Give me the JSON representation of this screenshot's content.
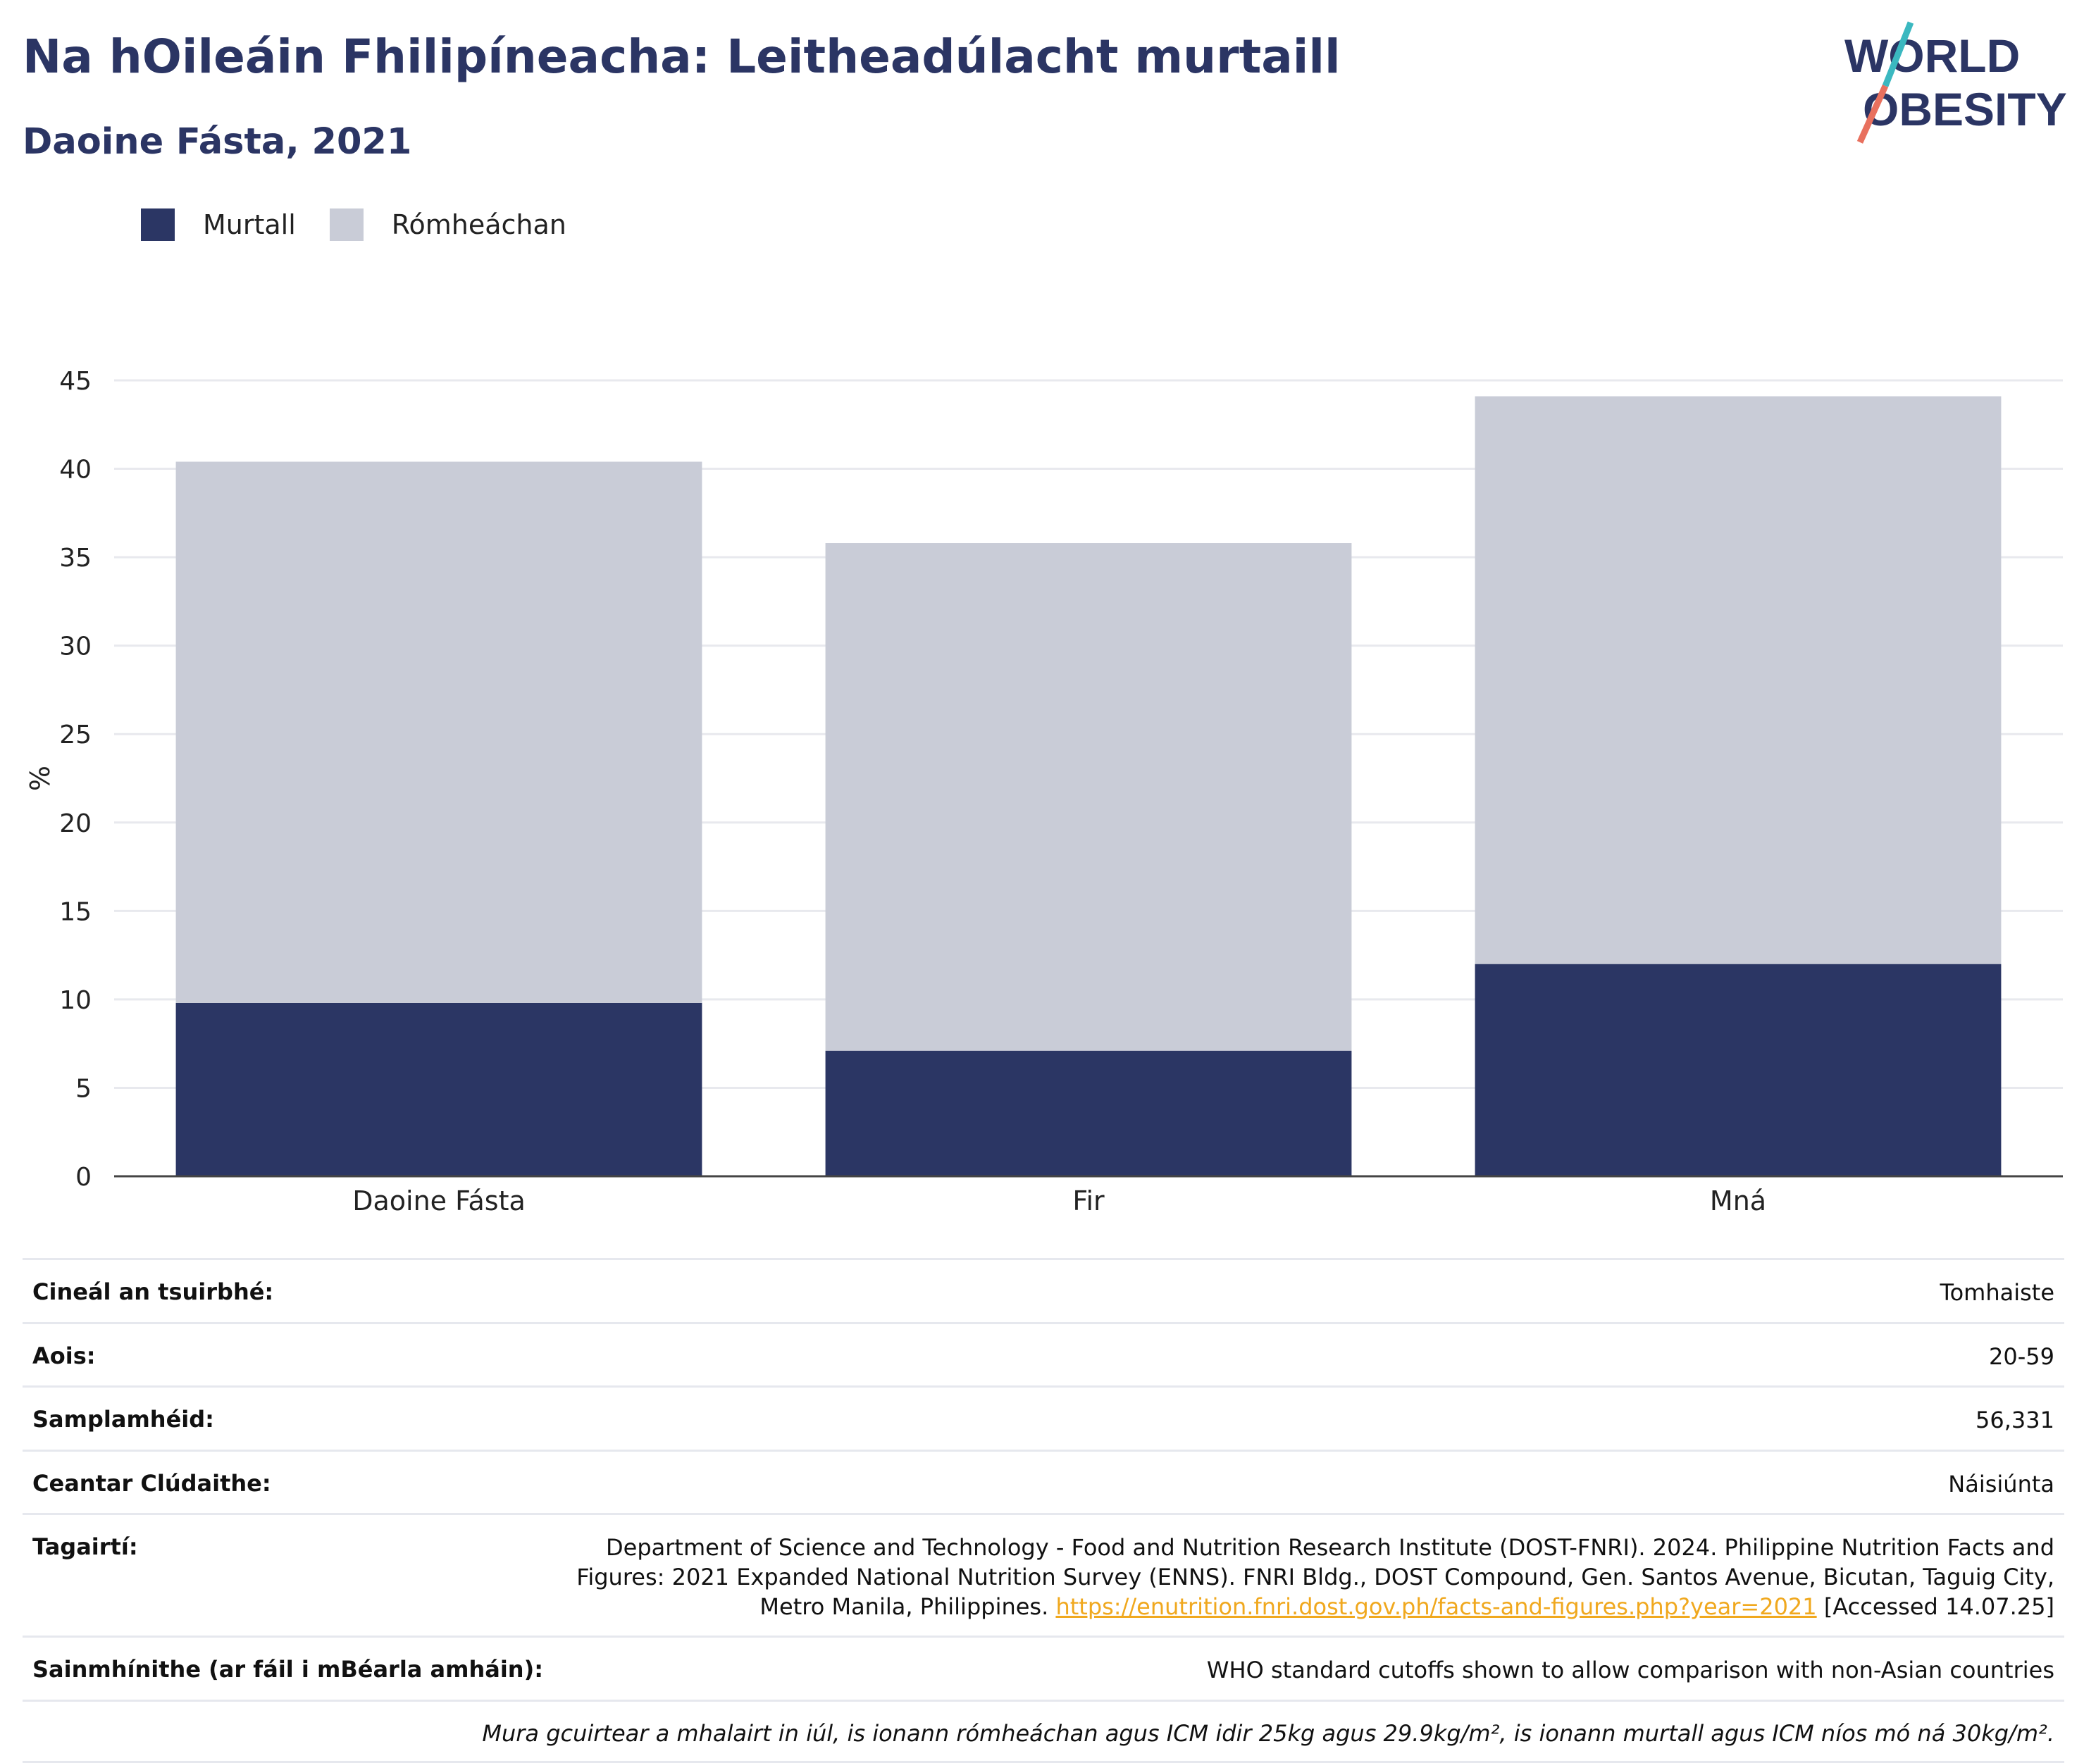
{
  "title": "Na hOileáin Fhilipíneacha: Leitheadúlacht murtaill",
  "subtitle": "Daoine Fásta, 2021",
  "logo": {
    "line1": "WORLD",
    "line2": "OBESITY"
  },
  "colors": {
    "obese": "#2b3664",
    "overweight": "#c9ccd7",
    "title": "#2b3564",
    "link": "#f0a81e",
    "logo_teal": "#3bb8c0",
    "logo_coral": "#e8705e"
  },
  "legend": [
    {
      "label": "Murtall",
      "color": "#2b3664"
    },
    {
      "label": "Rómheáchan",
      "color": "#c9ccd7"
    }
  ],
  "chart_data": {
    "type": "bar",
    "stacked": true,
    "categories": [
      "Daoine Fásta",
      "Fir",
      "Mná"
    ],
    "series": [
      {
        "name": "Murtall",
        "values": [
          9.8,
          7.1,
          12.0
        ]
      },
      {
        "name": "Rómheáchan",
        "values": [
          30.6,
          28.7,
          32.1
        ]
      }
    ],
    "title": "",
    "xlabel": "",
    "ylabel": "%",
    "ylim": [
      0,
      45
    ],
    "yticks": [
      0,
      5,
      10,
      15,
      20,
      25,
      30,
      35,
      40,
      45
    ],
    "grid": true,
    "legend_position": "top-left"
  },
  "info": {
    "survey_type": {
      "label": "Cineál an tsuirbhé:",
      "value": "Tomhaiste"
    },
    "age": {
      "label": "Aois:",
      "value": "20-59"
    },
    "sample_size": {
      "label": "Samplamhéid:",
      "value": "56,331"
    },
    "coverage": {
      "label": "Ceantar Clúdaithe:",
      "value": "Náisiúnta"
    },
    "references": {
      "label": "Tagairtí:",
      "text_line1": "Department of Science and Technology - Food and Nutrition Research Institute (DOST-FNRI). 2024. Philippine Nutrition Facts and",
      "text_line2": "Figures: 2021 Expanded National Nutrition Survey (ENNS). FNRI Bldg., DOST Compound, Gen. Santos Avenue, Bicutan, Taguig City,",
      "text_line3": "Metro Manila, Philippines.",
      "link": "https://enutrition.fnri.dost.gov.ph/facts-and-figures.php?year=2021",
      "accessed": "[Accessed 14.07.25]"
    },
    "definitions": {
      "label": "Sainmhínithe (ar fáil i mBéarla amháin):",
      "value": "WHO standard cutoffs shown to allow comparison with non-Asian countries"
    },
    "note": "Mura gcuirtear a mhalairt in iúl, is ionann rómheáchan agus ICM idir 25kg agus 29.9kg/m², is ionann murtall agus ICM níos mó ná 30kg/m²."
  }
}
